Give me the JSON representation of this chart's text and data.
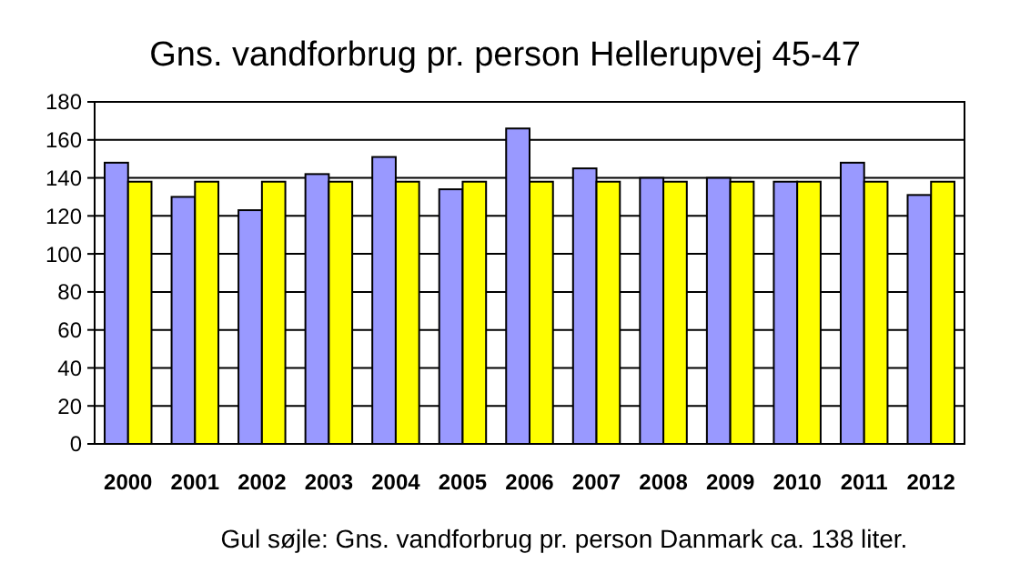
{
  "chart_data": {
    "type": "bar",
    "title": "Gns. vandforbrug pr. person Hellerupvej 45-47",
    "categories": [
      "2000",
      "2001",
      "2002",
      "2003",
      "2004",
      "2005",
      "2006",
      "2007",
      "2008",
      "2009",
      "2010",
      "2011",
      "2012"
    ],
    "series": [
      {
        "color": "#9999ff",
        "values": [
          148,
          130,
          123,
          142,
          151,
          134,
          166,
          145,
          140,
          140,
          138,
          148,
          131
        ]
      },
      {
        "color": "#ffff00",
        "values": [
          138,
          138,
          138,
          138,
          138,
          138,
          138,
          138,
          138,
          138,
          138,
          138,
          138
        ]
      }
    ],
    "ylim": [
      0,
      180
    ],
    "yticks": [
      0,
      20,
      40,
      60,
      80,
      100,
      120,
      140,
      160,
      180
    ],
    "grid": "y",
    "annotations": [
      "Gul søjle: Gns. vandforbrug pr. person Danmark ca. 138 liter."
    ]
  }
}
